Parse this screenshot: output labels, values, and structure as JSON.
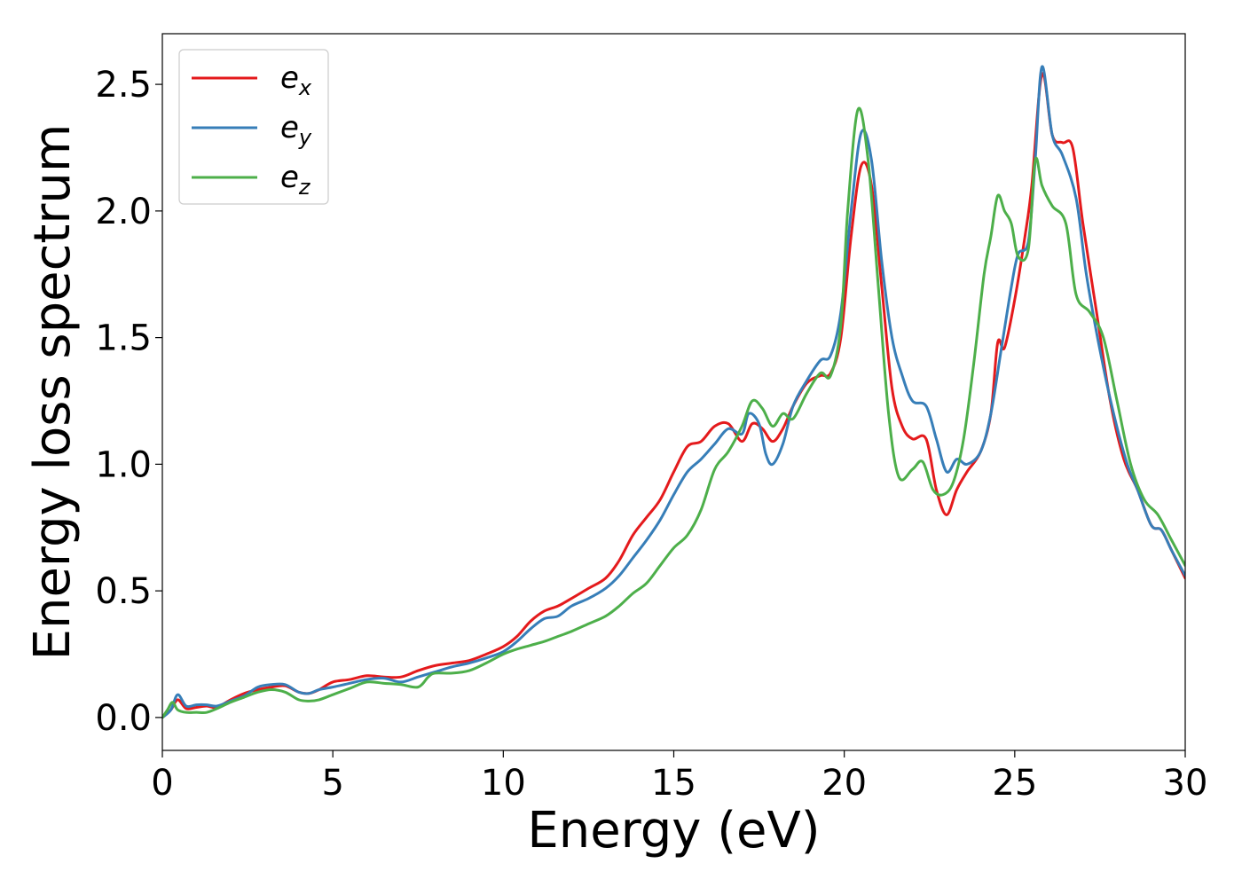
{
  "chart_data": {
    "type": "line",
    "xlabel": "Energy (eV)",
    "ylabel": "Energy loss spectrum",
    "xlim": [
      0,
      30
    ],
    "ylim": [
      -0.13,
      2.7
    ],
    "xticks": [
      0,
      5,
      10,
      15,
      20,
      25,
      30
    ],
    "xtick_labels": [
      "0",
      "5",
      "10",
      "15",
      "20",
      "25",
      "30"
    ],
    "yticks": [
      0.0,
      0.5,
      1.0,
      1.5,
      2.0,
      2.5
    ],
    "ytick_labels": [
      "0.0",
      "0.5",
      "1.0",
      "1.5",
      "2.0",
      "2.5"
    ],
    "grid": false,
    "legend_position": "top-left",
    "series": [
      {
        "name": "e",
        "subscript": "x",
        "color": "#e41a1c",
        "points": [
          [
            0,
            0.0
          ],
          [
            0.25,
            0.03
          ],
          [
            0.45,
            0.07
          ],
          [
            0.7,
            0.035
          ],
          [
            1.0,
            0.04
          ],
          [
            1.3,
            0.045
          ],
          [
            1.6,
            0.04
          ],
          [
            2.0,
            0.07
          ],
          [
            2.4,
            0.095
          ],
          [
            2.8,
            0.11
          ],
          [
            3.2,
            0.12
          ],
          [
            3.6,
            0.125
          ],
          [
            4.0,
            0.1
          ],
          [
            4.3,
            0.095
          ],
          [
            4.6,
            0.11
          ],
          [
            5.0,
            0.14
          ],
          [
            5.5,
            0.15
          ],
          [
            6.0,
            0.165
          ],
          [
            6.5,
            0.16
          ],
          [
            7.0,
            0.16
          ],
          [
            7.5,
            0.185
          ],
          [
            8.0,
            0.205
          ],
          [
            8.5,
            0.215
          ],
          [
            9.0,
            0.225
          ],
          [
            9.5,
            0.25
          ],
          [
            10.0,
            0.28
          ],
          [
            10.4,
            0.32
          ],
          [
            10.8,
            0.38
          ],
          [
            11.2,
            0.42
          ],
          [
            11.6,
            0.44
          ],
          [
            12.0,
            0.47
          ],
          [
            12.5,
            0.51
          ],
          [
            13.0,
            0.55
          ],
          [
            13.4,
            0.62
          ],
          [
            13.8,
            0.72
          ],
          [
            14.2,
            0.79
          ],
          [
            14.6,
            0.86
          ],
          [
            15.0,
            0.97
          ],
          [
            15.4,
            1.07
          ],
          [
            15.8,
            1.09
          ],
          [
            16.2,
            1.15
          ],
          [
            16.6,
            1.16
          ],
          [
            17.0,
            1.09
          ],
          [
            17.3,
            1.16
          ],
          [
            17.6,
            1.14
          ],
          [
            17.9,
            1.09
          ],
          [
            18.2,
            1.14
          ],
          [
            18.5,
            1.23
          ],
          [
            18.9,
            1.32
          ],
          [
            19.3,
            1.35
          ],
          [
            19.6,
            1.36
          ],
          [
            19.9,
            1.5
          ],
          [
            20.2,
            1.9
          ],
          [
            20.5,
            2.18
          ],
          [
            20.8,
            2.1
          ],
          [
            21.1,
            1.7
          ],
          [
            21.4,
            1.3
          ],
          [
            21.7,
            1.15
          ],
          [
            22.0,
            1.1
          ],
          [
            22.4,
            1.1
          ],
          [
            22.7,
            0.9
          ],
          [
            23.0,
            0.8
          ],
          [
            23.3,
            0.9
          ],
          [
            23.6,
            0.97
          ],
          [
            24.0,
            1.05
          ],
          [
            24.3,
            1.2
          ],
          [
            24.5,
            1.48
          ],
          [
            24.7,
            1.46
          ],
          [
            25.0,
            1.65
          ],
          [
            25.3,
            1.9
          ],
          [
            25.5,
            2.1
          ],
          [
            25.8,
            2.54
          ],
          [
            26.1,
            2.3
          ],
          [
            26.4,
            2.27
          ],
          [
            26.7,
            2.25
          ],
          [
            27.0,
            1.95
          ],
          [
            27.4,
            1.6
          ],
          [
            27.8,
            1.25
          ],
          [
            28.2,
            1.02
          ],
          [
            28.6,
            0.9
          ],
          [
            29.0,
            0.76
          ],
          [
            29.3,
            0.74
          ],
          [
            29.6,
            0.66
          ],
          [
            30.0,
            0.55
          ]
        ]
      },
      {
        "name": "e",
        "subscript": "y",
        "color": "#377eb8",
        "points": [
          [
            0,
            0.0
          ],
          [
            0.25,
            0.03
          ],
          [
            0.45,
            0.09
          ],
          [
            0.7,
            0.045
          ],
          [
            1.0,
            0.05
          ],
          [
            1.3,
            0.05
          ],
          [
            1.6,
            0.045
          ],
          [
            2.0,
            0.065
          ],
          [
            2.4,
            0.085
          ],
          [
            2.8,
            0.12
          ],
          [
            3.2,
            0.13
          ],
          [
            3.6,
            0.13
          ],
          [
            4.0,
            0.1
          ],
          [
            4.3,
            0.095
          ],
          [
            4.6,
            0.11
          ],
          [
            5.0,
            0.12
          ],
          [
            5.5,
            0.135
          ],
          [
            6.0,
            0.15
          ],
          [
            6.5,
            0.155
          ],
          [
            7.0,
            0.14
          ],
          [
            7.5,
            0.16
          ],
          [
            8.0,
            0.18
          ],
          [
            8.5,
            0.2
          ],
          [
            9.0,
            0.215
          ],
          [
            9.5,
            0.235
          ],
          [
            10.0,
            0.26
          ],
          [
            10.4,
            0.3
          ],
          [
            10.8,
            0.35
          ],
          [
            11.2,
            0.39
          ],
          [
            11.6,
            0.4
          ],
          [
            12.0,
            0.44
          ],
          [
            12.5,
            0.47
          ],
          [
            13.0,
            0.51
          ],
          [
            13.4,
            0.56
          ],
          [
            13.8,
            0.63
          ],
          [
            14.2,
            0.7
          ],
          [
            14.6,
            0.78
          ],
          [
            15.0,
            0.88
          ],
          [
            15.4,
            0.97
          ],
          [
            15.8,
            1.02
          ],
          [
            16.2,
            1.08
          ],
          [
            16.6,
            1.14
          ],
          [
            17.0,
            1.12
          ],
          [
            17.2,
            1.2
          ],
          [
            17.5,
            1.16
          ],
          [
            17.7,
            1.04
          ],
          [
            17.9,
            1.0
          ],
          [
            18.2,
            1.08
          ],
          [
            18.5,
            1.23
          ],
          [
            18.9,
            1.33
          ],
          [
            19.3,
            1.41
          ],
          [
            19.6,
            1.43
          ],
          [
            19.9,
            1.6
          ],
          [
            20.2,
            2.0
          ],
          [
            20.5,
            2.31
          ],
          [
            20.8,
            2.2
          ],
          [
            21.1,
            1.8
          ],
          [
            21.4,
            1.5
          ],
          [
            21.7,
            1.35
          ],
          [
            22.0,
            1.25
          ],
          [
            22.4,
            1.23
          ],
          [
            22.7,
            1.1
          ],
          [
            23.0,
            0.97
          ],
          [
            23.3,
            1.02
          ],
          [
            23.6,
            1.0
          ],
          [
            24.0,
            1.05
          ],
          [
            24.3,
            1.2
          ],
          [
            24.6,
            1.45
          ],
          [
            24.9,
            1.7
          ],
          [
            25.1,
            1.83
          ],
          [
            25.4,
            1.88
          ],
          [
            25.6,
            2.2
          ],
          [
            25.8,
            2.57
          ],
          [
            26.1,
            2.3
          ],
          [
            26.4,
            2.22
          ],
          [
            26.8,
            2.05
          ],
          [
            27.1,
            1.75
          ],
          [
            27.5,
            1.45
          ],
          [
            27.9,
            1.2
          ],
          [
            28.3,
            1.0
          ],
          [
            28.6,
            0.9
          ],
          [
            29.0,
            0.76
          ],
          [
            29.3,
            0.74
          ],
          [
            29.6,
            0.66
          ],
          [
            30.0,
            0.56
          ]
        ]
      },
      {
        "name": "e",
        "subscript": "z",
        "color": "#4daf4a",
        "points": [
          [
            0,
            0.0
          ],
          [
            0.15,
            0.03
          ],
          [
            0.3,
            0.06
          ],
          [
            0.45,
            0.03
          ],
          [
            0.7,
            0.02
          ],
          [
            1.0,
            0.02
          ],
          [
            1.3,
            0.02
          ],
          [
            1.6,
            0.035
          ],
          [
            2.0,
            0.06
          ],
          [
            2.4,
            0.08
          ],
          [
            2.8,
            0.1
          ],
          [
            3.2,
            0.11
          ],
          [
            3.6,
            0.1
          ],
          [
            4.0,
            0.07
          ],
          [
            4.3,
            0.065
          ],
          [
            4.6,
            0.07
          ],
          [
            5.0,
            0.09
          ],
          [
            5.5,
            0.115
          ],
          [
            6.0,
            0.14
          ],
          [
            6.5,
            0.135
          ],
          [
            7.0,
            0.13
          ],
          [
            7.5,
            0.12
          ],
          [
            7.8,
            0.16
          ],
          [
            8.0,
            0.175
          ],
          [
            8.5,
            0.175
          ],
          [
            9.0,
            0.185
          ],
          [
            9.5,
            0.215
          ],
          [
            10.0,
            0.25
          ],
          [
            10.4,
            0.27
          ],
          [
            10.8,
            0.285
          ],
          [
            11.2,
            0.3
          ],
          [
            11.6,
            0.32
          ],
          [
            12.0,
            0.34
          ],
          [
            12.5,
            0.37
          ],
          [
            13.0,
            0.4
          ],
          [
            13.4,
            0.44
          ],
          [
            13.8,
            0.49
          ],
          [
            14.2,
            0.53
          ],
          [
            14.6,
            0.6
          ],
          [
            15.0,
            0.67
          ],
          [
            15.4,
            0.72
          ],
          [
            15.8,
            0.82
          ],
          [
            16.2,
            0.98
          ],
          [
            16.6,
            1.05
          ],
          [
            17.0,
            1.15
          ],
          [
            17.3,
            1.25
          ],
          [
            17.6,
            1.22
          ],
          [
            17.9,
            1.15
          ],
          [
            18.2,
            1.2
          ],
          [
            18.5,
            1.18
          ],
          [
            18.9,
            1.28
          ],
          [
            19.3,
            1.36
          ],
          [
            19.6,
            1.35
          ],
          [
            19.9,
            1.55
          ],
          [
            20.1,
            2.0
          ],
          [
            20.4,
            2.4
          ],
          [
            20.7,
            2.2
          ],
          [
            21.0,
            1.7
          ],
          [
            21.3,
            1.2
          ],
          [
            21.6,
            0.95
          ],
          [
            22.0,
            0.98
          ],
          [
            22.3,
            1.01
          ],
          [
            22.6,
            0.9
          ],
          [
            22.9,
            0.88
          ],
          [
            23.2,
            0.93
          ],
          [
            23.5,
            1.1
          ],
          [
            23.8,
            1.4
          ],
          [
            24.1,
            1.75
          ],
          [
            24.3,
            1.9
          ],
          [
            24.5,
            2.06
          ],
          [
            24.7,
            2.0
          ],
          [
            24.9,
            1.95
          ],
          [
            25.1,
            1.82
          ],
          [
            25.4,
            1.85
          ],
          [
            25.6,
            2.2
          ],
          [
            25.8,
            2.1
          ],
          [
            26.1,
            2.02
          ],
          [
            26.5,
            1.95
          ],
          [
            26.8,
            1.67
          ],
          [
            27.2,
            1.6
          ],
          [
            27.6,
            1.5
          ],
          [
            28.0,
            1.25
          ],
          [
            28.4,
            1.0
          ],
          [
            28.8,
            0.86
          ],
          [
            29.2,
            0.8
          ],
          [
            29.6,
            0.7
          ],
          [
            30.0,
            0.6
          ]
        ]
      }
    ]
  }
}
